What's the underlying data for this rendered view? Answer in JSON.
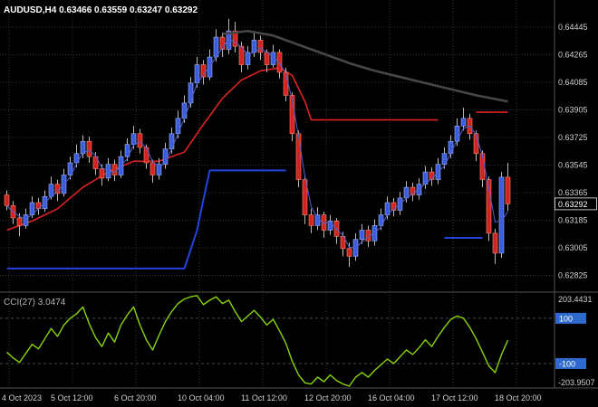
{
  "header": {
    "symbol_line": "AUDUSD,H4 0.63466 0.63559 0.63247 0.63292"
  },
  "indicator_panel": {
    "label": "CCI(27) 3.0474",
    "max_label": "203.4431",
    "min_label": "-203.9507",
    "level_labels": [
      "100",
      "-100"
    ]
  },
  "price_axis": {
    "current_price": "0.63292"
  },
  "colors": {
    "background": "#000000",
    "grid": "#333333",
    "level_line": "#4a4a4a",
    "bull": "#3c5ce0",
    "bull_border": "#9db1f0",
    "bear": "#d42222",
    "bear_border": "#ff8866",
    "wick": "#b8b8b8",
    "ma_fast": "#4f63d2",
    "ma_slow_dark": "#474747",
    "line_red": "#dd2222",
    "line_blue": "#2244dd",
    "cci_line": "#86d40a",
    "level_badge": "#2f6bce",
    "axis_text": "#d0d0d0",
    "separator": "#565656",
    "price_badge_bg": "#000000",
    "price_badge_border": "#c0c0c0",
    "badge_text": "#ffffff"
  },
  "chart_data": [
    {
      "type": "candlestick",
      "symbol": "AUDUSD",
      "timeframe": "H4",
      "title": "AUDUSD,H4",
      "current_bar": {
        "open": 0.63466,
        "high": 0.63559,
        "low": 0.63247,
        "close": 0.63292
      },
      "y_ticks": [
        "0.64445",
        "0.64265",
        "0.64085",
        "0.63905",
        "0.63725",
        "0.63545",
        "0.63365",
        "0.63185",
        "0.63005",
        "0.62825"
      ],
      "x_ticks": [
        "4 Oct 2023",
        "5 Oct 12:00",
        "6 Oct 20:00",
        "10 Oct 04:00",
        "11 Oct 12:00",
        "12 Oct 20:00",
        "16 Oct 04:00",
        "17 Oct 12:00",
        "18 Oct 20:00"
      ],
      "columns": [
        "open",
        "high",
        "low",
        "close"
      ],
      "candles": [
        [
          0.6335,
          0.6338,
          0.6325,
          0.6328
        ],
        [
          0.6328,
          0.6331,
          0.6316,
          0.632
        ],
        [
          0.632,
          0.6323,
          0.6308,
          0.6315
        ],
        [
          0.6315,
          0.6326,
          0.6313,
          0.6322
        ],
        [
          0.6322,
          0.6334,
          0.632,
          0.633
        ],
        [
          0.633,
          0.6333,
          0.6322,
          0.6326
        ],
        [
          0.6326,
          0.6338,
          0.6324,
          0.6334
        ],
        [
          0.6334,
          0.6347,
          0.6332,
          0.6342
        ],
        [
          0.6342,
          0.6345,
          0.6331,
          0.6336
        ],
        [
          0.6336,
          0.6352,
          0.6334,
          0.6348
        ],
        [
          0.6348,
          0.636,
          0.6345,
          0.6356
        ],
        [
          0.6356,
          0.6368,
          0.6353,
          0.6362
        ],
        [
          0.6362,
          0.6374,
          0.6359,
          0.637
        ],
        [
          0.637,
          0.6373,
          0.6356,
          0.636
        ],
        [
          0.636,
          0.6363,
          0.6348,
          0.6352
        ],
        [
          0.6352,
          0.6355,
          0.6341,
          0.6346
        ],
        [
          0.6346,
          0.6359,
          0.6344,
          0.6355
        ],
        [
          0.6355,
          0.6358,
          0.6344,
          0.6348
        ],
        [
          0.6348,
          0.6364,
          0.6346,
          0.636
        ],
        [
          0.636,
          0.6372,
          0.6357,
          0.6368
        ],
        [
          0.6368,
          0.638,
          0.6365,
          0.6375
        ],
        [
          0.6375,
          0.6378,
          0.6362,
          0.6366
        ],
        [
          0.6366,
          0.6368,
          0.6352,
          0.6356
        ],
        [
          0.6356,
          0.6358,
          0.6343,
          0.6348
        ],
        [
          0.6348,
          0.6359,
          0.6345,
          0.6355
        ],
        [
          0.6355,
          0.6369,
          0.6352,
          0.6365
        ],
        [
          0.6365,
          0.6379,
          0.6362,
          0.6375
        ],
        [
          0.6375,
          0.639,
          0.6372,
          0.6385
        ],
        [
          0.6385,
          0.64,
          0.6382,
          0.6395
        ],
        [
          0.6395,
          0.6412,
          0.6392,
          0.6408
        ],
        [
          0.6408,
          0.6425,
          0.6405,
          0.642
        ],
        [
          0.642,
          0.6423,
          0.6407,
          0.6412
        ],
        [
          0.6412,
          0.643,
          0.641,
          0.6425
        ],
        [
          0.6425,
          0.6443,
          0.6422,
          0.6438
        ],
        [
          0.6438,
          0.6441,
          0.6425,
          0.643
        ],
        [
          0.643,
          0.645,
          0.6427,
          0.6442
        ],
        [
          0.6442,
          0.6448,
          0.6428,
          0.6432
        ],
        [
          0.6432,
          0.6435,
          0.6415,
          0.642
        ],
        [
          0.642,
          0.6432,
          0.6417,
          0.6428
        ],
        [
          0.6428,
          0.6442,
          0.6425,
          0.6436
        ],
        [
          0.6436,
          0.6439,
          0.6423,
          0.6428
        ],
        [
          0.6428,
          0.643,
          0.6415,
          0.642
        ],
        [
          0.642,
          0.6433,
          0.6418,
          0.6428
        ],
        [
          0.6428,
          0.643,
          0.6411,
          0.6415
        ],
        [
          0.6415,
          0.6418,
          0.6396,
          0.64
        ],
        [
          0.64,
          0.6402,
          0.637,
          0.6375
        ],
        [
          0.6375,
          0.6377,
          0.634,
          0.6345
        ],
        [
          0.6345,
          0.6348,
          0.6316,
          0.6322
        ],
        [
          0.6322,
          0.6326,
          0.631,
          0.6315
        ],
        [
          0.6315,
          0.6327,
          0.6312,
          0.6322
        ],
        [
          0.6322,
          0.6324,
          0.6307,
          0.6312
        ],
        [
          0.6312,
          0.6322,
          0.6309,
          0.6318
        ],
        [
          0.6318,
          0.632,
          0.6303,
          0.6308
        ],
        [
          0.6308,
          0.6311,
          0.6295,
          0.63
        ],
        [
          0.63,
          0.6304,
          0.6288,
          0.6295
        ],
        [
          0.6295,
          0.631,
          0.6292,
          0.6306
        ],
        [
          0.6306,
          0.6316,
          0.6303,
          0.6312
        ],
        [
          0.6312,
          0.6315,
          0.6301,
          0.6305
        ],
        [
          0.6305,
          0.6319,
          0.6302,
          0.6315
        ],
        [
          0.6315,
          0.6326,
          0.6312,
          0.6322
        ],
        [
          0.6322,
          0.6334,
          0.6319,
          0.633
        ],
        [
          0.633,
          0.6333,
          0.6321,
          0.6325
        ],
        [
          0.6325,
          0.6337,
          0.6322,
          0.6333
        ],
        [
          0.6333,
          0.6344,
          0.633,
          0.634
        ],
        [
          0.634,
          0.6343,
          0.6331,
          0.6335
        ],
        [
          0.6335,
          0.6346,
          0.6332,
          0.6342
        ],
        [
          0.6342,
          0.6354,
          0.6339,
          0.635
        ],
        [
          0.635,
          0.6353,
          0.6341,
          0.6345
        ],
        [
          0.6345,
          0.6359,
          0.6342,
          0.6355
        ],
        [
          0.6355,
          0.6366,
          0.6352,
          0.6362
        ],
        [
          0.6362,
          0.6374,
          0.6359,
          0.637
        ],
        [
          0.637,
          0.6385,
          0.6367,
          0.638
        ],
        [
          0.638,
          0.6392,
          0.6377,
          0.6385
        ],
        [
          0.6385,
          0.6388,
          0.6371,
          0.6375
        ],
        [
          0.6375,
          0.6377,
          0.6357,
          0.6362
        ],
        [
          0.6362,
          0.6364,
          0.634,
          0.6345
        ],
        [
          0.6345,
          0.6347,
          0.6305,
          0.631
        ],
        [
          0.631,
          0.6313,
          0.629,
          0.6297
        ],
        [
          0.6297,
          0.635,
          0.6294,
          0.63466
        ],
        [
          0.63466,
          0.63559,
          0.63247,
          0.63292
        ]
      ],
      "overlays": {
        "ma_dark": [
          [
            34,
            0.644
          ],
          [
            38,
            0.6442
          ],
          [
            42,
            0.6439
          ],
          [
            46,
            0.6433
          ],
          [
            50,
            0.6427
          ],
          [
            54,
            0.6421
          ],
          [
            58,
            0.6416
          ],
          [
            62,
            0.6412
          ],
          [
            66,
            0.6408
          ],
          [
            70,
            0.6404
          ],
          [
            74,
            0.64
          ],
          [
            79,
            0.6396
          ]
        ],
        "red_line_segments": [
          [
            [
              0,
              0.6312
            ],
            [
              4,
              0.6318
            ],
            [
              8,
              0.6326
            ],
            [
              12,
              0.634
            ],
            [
              16,
              0.635
            ],
            [
              20,
              0.6357
            ],
            [
              24,
              0.6357
            ],
            [
              28,
              0.6363
            ],
            [
              31,
              0.6381
            ],
            [
              34,
              0.6398
            ],
            [
              37,
              0.641
            ],
            [
              40,
              0.6416
            ],
            [
              43,
              0.6418
            ],
            [
              45,
              0.6413
            ],
            [
              47,
              0.6396
            ],
            [
              48,
              0.6384
            ],
            [
              68,
              0.6384
            ]
          ],
          [
            [
              74,
              0.6389
            ],
            [
              79,
              0.6389
            ]
          ]
        ],
        "blue_step_segments": [
          [
            [
              0,
              0.6287
            ],
            [
              28,
              0.6287
            ],
            [
              30,
              0.6312
            ],
            [
              31,
              0.6332
            ],
            [
              32,
              0.6351
            ],
            [
              44,
              0.6351
            ]
          ],
          [
            [
              69,
              0.6307
            ],
            [
              75,
              0.6307
            ]
          ]
        ]
      }
    },
    {
      "type": "line",
      "title": "CCI(27)",
      "period": 27,
      "current": 3.0474,
      "scale_max": 203.4431,
      "scale_min": -203.9507,
      "levels": [
        100,
        -100
      ],
      "values": [
        -50,
        -75,
        -95,
        -55,
        -15,
        -35,
        10,
        55,
        20,
        70,
        100,
        120,
        150,
        75,
        15,
        -25,
        35,
        -5,
        70,
        115,
        150,
        70,
        5,
        -40,
        25,
        85,
        130,
        165,
        185,
        195,
        200,
        160,
        180,
        195,
        165,
        180,
        130,
        85,
        110,
        135,
        105,
        70,
        95,
        45,
        -10,
        -90,
        -150,
        -185,
        -190,
        -160,
        -180,
        -150,
        -175,
        -190,
        -200,
        -160,
        -140,
        -160,
        -130,
        -105,
        -80,
        -100,
        -70,
        -40,
        -60,
        -30,
        5,
        -25,
        20,
        60,
        95,
        110,
        100,
        60,
        10,
        -50,
        -110,
        -140,
        -60,
        3.0474
      ]
    }
  ]
}
